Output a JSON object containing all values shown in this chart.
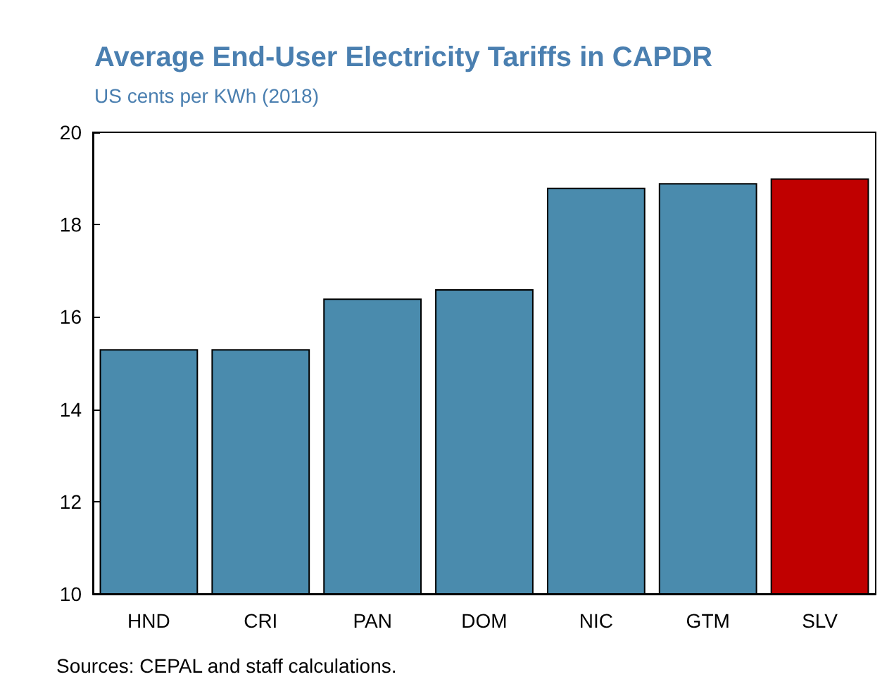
{
  "chart_data": {
    "type": "bar",
    "title": "Average End-User Electricity Tariffs in CAPDR",
    "subtitle": "US cents per KWh (2018)",
    "categories": [
      "HND",
      "CRI",
      "PAN",
      "DOM",
      "NIC",
      "GTM",
      "SLV"
    ],
    "values": [
      15.3,
      15.3,
      16.4,
      16.6,
      18.8,
      18.9,
      19.0
    ],
    "colors": [
      "#4a8bad",
      "#4a8bad",
      "#4a8bad",
      "#4a8bad",
      "#4a8bad",
      "#4a8bad",
      "#c00000"
    ],
    "ylim": [
      10,
      20
    ],
    "yticks": [
      10,
      12,
      14,
      16,
      18,
      20
    ],
    "grid": false,
    "annotations": [
      "Sources: CEPAL and staff calculations."
    ]
  }
}
